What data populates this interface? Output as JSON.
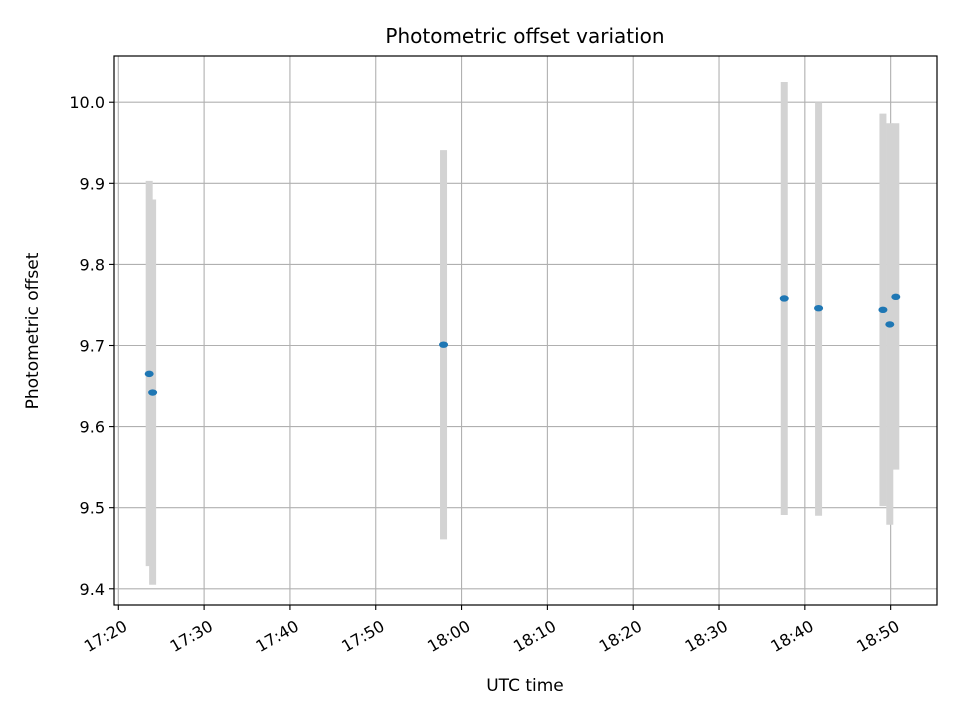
{
  "chart_data": {
    "type": "scatter",
    "title": "Photometric offset variation",
    "xlabel": "UTC time",
    "ylabel": "Photometric offset",
    "x_tick_labels": [
      "17:20",
      "17:30",
      "17:40",
      "17:50",
      "18:00",
      "18:10",
      "18:20",
      "18:30",
      "18:40",
      "18:50"
    ],
    "x_tick_minutes": [
      1040,
      1050,
      1060,
      1070,
      1080,
      1090,
      1100,
      1110,
      1120,
      1130
    ],
    "xlim_minutes": [
      1039.5,
      1135.4
    ],
    "y_ticks": [
      "9.4",
      "9.5",
      "9.6",
      "9.7",
      "9.8",
      "9.9",
      "10.0"
    ],
    "ylim": [
      9.38,
      10.057
    ],
    "grid": true,
    "colors": {
      "point": "#1f77b4",
      "errorbar": "#d3d3d3",
      "grid": "#b0b0b0",
      "axes": "#000000"
    },
    "points": [
      {
        "time": "17:23:36",
        "y": 9.665,
        "low": 9.428,
        "high": 9.903
      },
      {
        "time": "17:24:00",
        "y": 9.642,
        "low": 9.405,
        "high": 9.88
      },
      {
        "time": "17:57:54",
        "y": 9.701,
        "low": 9.461,
        "high": 9.941
      },
      {
        "time": "18:37:36",
        "y": 9.758,
        "low": 9.491,
        "high": 10.025
      },
      {
        "time": "18:41:36",
        "y": 9.746,
        "low": 9.49,
        "high": 10.0
      },
      {
        "time": "18:49:06",
        "y": 9.744,
        "low": 9.502,
        "high": 9.986
      },
      {
        "time": "18:49:54",
        "y": 9.726,
        "low": 9.479,
        "high": 9.974
      },
      {
        "time": "18:50:36",
        "y": 9.76,
        "low": 9.547,
        "high": 9.974
      }
    ]
  }
}
